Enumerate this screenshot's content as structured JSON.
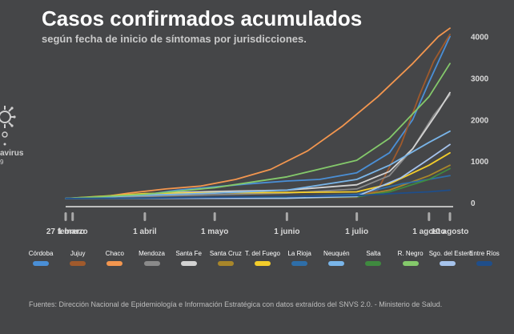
{
  "title": "Casos confirmados acumulados",
  "subtitle": "según fecha de inicio de síntomas por jurisdicciones.",
  "logo": {
    "icon": "coronavirus-icon",
    "text": "avirus",
    "subtext": "9"
  },
  "source": "Fuentes: Dirección Nacional de Epidemiología e Información Estratégica con datos extraídos del SNVS 2.0. - Ministerio de Salud.",
  "chart_data": {
    "type": "line",
    "title": "Casos confirmados acumulados",
    "subtitle": "según fecha de inicio de síntomas por jurisdicciones.",
    "xlabel": "",
    "ylabel": "",
    "ylim": [
      0,
      4300
    ],
    "y_ticks": [
      0,
      1000,
      2000,
      3000,
      4000
    ],
    "y_tick_labels": [
      "0",
      "1000",
      "2000",
      "3000",
      "4000"
    ],
    "y_axis_position": "right",
    "x_range": [
      "2020-02-27",
      "2020-08-10"
    ],
    "x_ticks": [
      {
        "date": "2020-02-27",
        "label": "27 febrero"
      },
      {
        "date": "2020-03-01",
        "label": "1 marzo"
      },
      {
        "date": "2020-04-01",
        "label": "1 abril"
      },
      {
        "date": "2020-05-01",
        "label": "1 mayo"
      },
      {
        "date": "2020-06-01",
        "label": "1 junio"
      },
      {
        "date": "2020-07-01",
        "label": "1 julio"
      },
      {
        "date": "2020-08-01",
        "label": "1 agosto"
      },
      {
        "date": "2020-08-10",
        "label": "10 agosto"
      }
    ],
    "grid": false,
    "legend_position": "bottom",
    "series": [
      {
        "name": "Córdoba",
        "color": "#4a8fd6",
        "points": [
          [
            "2020-02-27",
            100
          ],
          [
            "2020-03-15",
            110
          ],
          [
            "2020-04-01",
            190
          ],
          [
            "2020-04-15",
            300
          ],
          [
            "2020-05-01",
            380
          ],
          [
            "2020-05-15",
            450
          ],
          [
            "2020-06-01",
            520
          ],
          [
            "2020-06-15",
            560
          ],
          [
            "2020-07-01",
            720
          ],
          [
            "2020-07-15",
            1200
          ],
          [
            "2020-07-25",
            2000
          ],
          [
            "2020-08-01",
            2900
          ],
          [
            "2020-08-10",
            4000
          ]
        ]
      },
      {
        "name": "Jujuy",
        "color": "#a05a2c",
        "points": [
          [
            "2020-02-27",
            100
          ],
          [
            "2020-04-01",
            105
          ],
          [
            "2020-05-01",
            108
          ],
          [
            "2020-06-01",
            112
          ],
          [
            "2020-07-01",
            130
          ],
          [
            "2020-07-10",
            300
          ],
          [
            "2020-07-20",
            1400
          ],
          [
            "2020-07-28",
            2600
          ],
          [
            "2020-08-03",
            3400
          ],
          [
            "2020-08-10",
            4050
          ]
        ]
      },
      {
        "name": "Chaco",
        "color": "#f3964f",
        "points": [
          [
            "2020-02-27",
            100
          ],
          [
            "2020-03-10",
            110
          ],
          [
            "2020-03-25",
            230
          ],
          [
            "2020-04-10",
            330
          ],
          [
            "2020-04-25",
            400
          ],
          [
            "2020-05-10",
            560
          ],
          [
            "2020-05-25",
            800
          ],
          [
            "2020-06-10",
            1250
          ],
          [
            "2020-06-25",
            1850
          ],
          [
            "2020-07-10",
            2550
          ],
          [
            "2020-07-25",
            3350
          ],
          [
            "2020-08-05",
            4000
          ],
          [
            "2020-08-10",
            4200
          ]
        ]
      },
      {
        "name": "Mendoza",
        "color": "#8a8a8a",
        "points": [
          [
            "2020-02-27",
            100
          ],
          [
            "2020-04-01",
            150
          ],
          [
            "2020-05-01",
            190
          ],
          [
            "2020-06-01",
            230
          ],
          [
            "2020-07-01",
            330
          ],
          [
            "2020-07-15",
            650
          ],
          [
            "2020-07-25",
            1300
          ],
          [
            "2020-08-03",
            2100
          ],
          [
            "2020-08-10",
            2600
          ]
        ]
      },
      {
        "name": "Santa Fe",
        "color": "#d3d3d3",
        "points": [
          [
            "2020-02-27",
            100
          ],
          [
            "2020-03-20",
            150
          ],
          [
            "2020-04-10",
            240
          ],
          [
            "2020-05-01",
            270
          ],
          [
            "2020-06-01",
            300
          ],
          [
            "2020-07-01",
            430
          ],
          [
            "2020-07-15",
            750
          ],
          [
            "2020-07-25",
            1300
          ],
          [
            "2020-08-05",
            2200
          ],
          [
            "2020-08-10",
            2650
          ]
        ]
      },
      {
        "name": "Santa Cruz",
        "color": "#a8862a",
        "points": [
          [
            "2020-02-27",
            100
          ],
          [
            "2020-04-01",
            110
          ],
          [
            "2020-05-01",
            115
          ],
          [
            "2020-06-01",
            120
          ],
          [
            "2020-07-01",
            160
          ],
          [
            "2020-07-15",
            300
          ],
          [
            "2020-08-01",
            650
          ],
          [
            "2020-08-10",
            900
          ]
        ]
      },
      {
        "name": "T. del Fuego",
        "color": "#f3cd2b",
        "points": [
          [
            "2020-02-27",
            100
          ],
          [
            "2020-04-01",
            220
          ],
          [
            "2020-05-01",
            240
          ],
          [
            "2020-06-01",
            245
          ],
          [
            "2020-07-01",
            260
          ],
          [
            "2020-07-15",
            450
          ],
          [
            "2020-08-01",
            900
          ],
          [
            "2020-08-10",
            1200
          ]
        ]
      },
      {
        "name": "La Rioja",
        "color": "#2e6ea8",
        "points": [
          [
            "2020-02-27",
            100
          ],
          [
            "2020-04-01",
            110
          ],
          [
            "2020-05-01",
            125
          ],
          [
            "2020-06-01",
            135
          ],
          [
            "2020-07-01",
            200
          ],
          [
            "2020-07-20",
            450
          ],
          [
            "2020-08-01",
            560
          ],
          [
            "2020-08-10",
            650
          ]
        ]
      },
      {
        "name": "Neuquén",
        "color": "#79b5e9",
        "points": [
          [
            "2020-02-27",
            100
          ],
          [
            "2020-04-01",
            180
          ],
          [
            "2020-05-01",
            230
          ],
          [
            "2020-06-01",
            300
          ],
          [
            "2020-07-01",
            560
          ],
          [
            "2020-07-15",
            900
          ],
          [
            "2020-08-01",
            1450
          ],
          [
            "2020-08-10",
            1720
          ]
        ]
      },
      {
        "name": "Salta",
        "color": "#3f8a3f",
        "points": [
          [
            "2020-02-27",
            100
          ],
          [
            "2020-04-01",
            103
          ],
          [
            "2020-05-01",
            106
          ],
          [
            "2020-06-01",
            108
          ],
          [
            "2020-07-01",
            140
          ],
          [
            "2020-07-15",
            260
          ],
          [
            "2020-08-01",
            560
          ],
          [
            "2020-08-10",
            820
          ]
        ]
      },
      {
        "name": "R. Negro",
        "color": "#84c96b",
        "points": [
          [
            "2020-02-27",
            100
          ],
          [
            "2020-04-01",
            200
          ],
          [
            "2020-05-01",
            360
          ],
          [
            "2020-06-01",
            620
          ],
          [
            "2020-07-01",
            1020
          ],
          [
            "2020-07-15",
            1550
          ],
          [
            "2020-08-01",
            2550
          ],
          [
            "2020-08-10",
            3350
          ]
        ]
      },
      {
        "name": "Sgo. del Estero",
        "color": "#a6c3ec",
        "points": [
          [
            "2020-02-27",
            100
          ],
          [
            "2020-04-01",
            102
          ],
          [
            "2020-05-01",
            104
          ],
          [
            "2020-06-01",
            106
          ],
          [
            "2020-07-01",
            150
          ],
          [
            "2020-07-20",
            600
          ],
          [
            "2020-08-01",
            1050
          ],
          [
            "2020-08-10",
            1400
          ]
        ]
      },
      {
        "name": "Entre Ríos",
        "color": "#1f4e8a",
        "points": [
          [
            "2020-02-27",
            100
          ],
          [
            "2020-04-01",
            110
          ],
          [
            "2020-05-01",
            130
          ],
          [
            "2020-06-01",
            145
          ],
          [
            "2020-07-01",
            170
          ],
          [
            "2020-07-20",
            230
          ],
          [
            "2020-08-01",
            260
          ],
          [
            "2020-08-10",
            300
          ]
        ]
      }
    ]
  }
}
